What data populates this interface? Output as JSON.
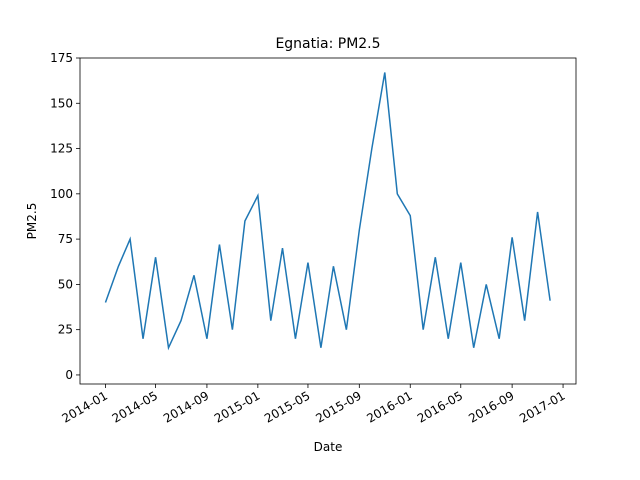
{
  "chart_data": {
    "type": "line",
    "title": "Egnatia: PM2.5",
    "xlabel": "Date",
    "ylabel": "PM2.5",
    "x": [
      "2014-01",
      "2014-02",
      "2014-03",
      "2014-04",
      "2014-05",
      "2014-06",
      "2014-07",
      "2014-08",
      "2014-09",
      "2014-10",
      "2014-11",
      "2014-12",
      "2015-01",
      "2015-02",
      "2015-03",
      "2015-04",
      "2015-05",
      "2015-06",
      "2015-07",
      "2015-08",
      "2015-09",
      "2015-10",
      "2015-11",
      "2015-12",
      "2016-01",
      "2016-02",
      "2016-03",
      "2016-04",
      "2016-05",
      "2016-06",
      "2016-07",
      "2016-08",
      "2016-09",
      "2016-10",
      "2016-11",
      "2016-12"
    ],
    "series": [
      {
        "name": "PM2.5",
        "color": "#1f77b4",
        "values": [
          40,
          60,
          75,
          20,
          65,
          15,
          30,
          55,
          20,
          72,
          25,
          85,
          99,
          30,
          70,
          20,
          62,
          15,
          60,
          25,
          80,
          125,
          167,
          100,
          88,
          25,
          65,
          20,
          62,
          15,
          50,
          20,
          76,
          30,
          90,
          41
        ]
      }
    ],
    "xlim": [
      "2013-11",
      "2017-02"
    ],
    "xticks": [
      "2014-01",
      "2014-05",
      "2014-09",
      "2015-01",
      "2015-05",
      "2015-09",
      "2016-01",
      "2016-05",
      "2016-09",
      "2017-01"
    ],
    "ylim": [
      -5,
      175
    ],
    "yticks": [
      0,
      25,
      50,
      75,
      100,
      125,
      150,
      175
    ]
  }
}
